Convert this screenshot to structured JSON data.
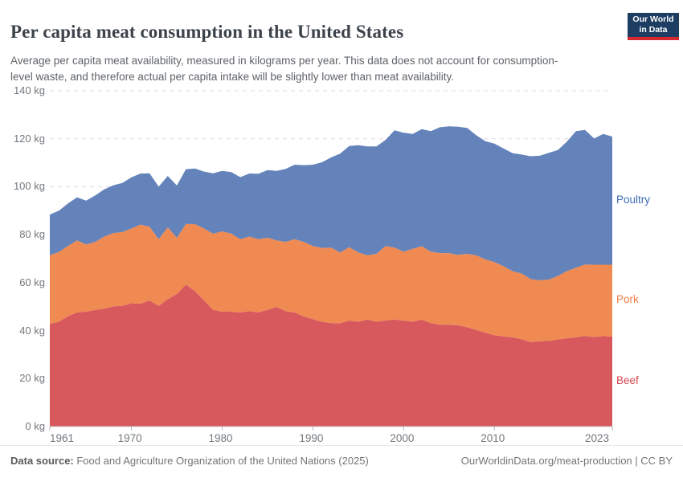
{
  "header": {
    "title": "Per capita meat consumption in the United States",
    "subtitle": "Average per capita meat availability, measured in kilograms per year. This data does not account for consumption-level waste, and therefore actual per capita intake will be slightly lower than meat availability.",
    "logo": {
      "line1": "Our World",
      "line2": "in Data",
      "bg_color": "#1d3d63",
      "bar_color": "#d7282f"
    }
  },
  "chart_data": {
    "type": "area",
    "stacked": true,
    "title": "Per capita meat consumption in the United States",
    "xlabel": "",
    "ylabel": "kilograms per year",
    "ylim": [
      0,
      140
    ],
    "y_ticks": [
      0,
      20,
      40,
      60,
      80,
      100,
      120,
      140
    ],
    "y_tick_suffix": " kg",
    "x_ticks": [
      1961,
      1970,
      1980,
      1990,
      2000,
      2010,
      2023
    ],
    "grid": "horizontal-dashed",
    "legend_position": "right-edge-labels",
    "grid_color": "#dcdcdc",
    "baseline_color": "#c9c9c9",
    "x": [
      1961,
      1962,
      1963,
      1964,
      1965,
      1966,
      1967,
      1968,
      1969,
      1970,
      1971,
      1972,
      1973,
      1974,
      1975,
      1976,
      1977,
      1978,
      1979,
      1980,
      1981,
      1982,
      1983,
      1984,
      1985,
      1986,
      1987,
      1988,
      1989,
      1990,
      1991,
      1992,
      1993,
      1994,
      1995,
      1996,
      1997,
      1998,
      1999,
      2000,
      2001,
      2002,
      2003,
      2004,
      2005,
      2006,
      2007,
      2008,
      2009,
      2010,
      2011,
      2012,
      2013,
      2014,
      2015,
      2016,
      2017,
      2018,
      2019,
      2020,
      2021,
      2022,
      2023
    ],
    "series": [
      {
        "name": "Beef",
        "color": "#d7595e",
        "label_color": "#d8484f",
        "values": [
          42.8,
          43.7,
          46.0,
          47.6,
          47.9,
          48.6,
          49.2,
          50.1,
          50.3,
          51.4,
          51.2,
          52.6,
          50.3,
          53.1,
          55.3,
          59.2,
          56.5,
          52.6,
          48.7,
          47.9,
          47.9,
          47.6,
          48.1,
          47.6,
          48.7,
          49.9,
          48.1,
          47.6,
          45.9,
          44.8,
          43.7,
          43.1,
          43.1,
          44.2,
          43.7,
          44.6,
          43.7,
          44.2,
          44.6,
          44.2,
          43.7,
          44.6,
          43.1,
          42.5,
          42.5,
          42.2,
          41.4,
          40.3,
          39.2,
          38.1,
          37.6,
          37.2,
          36.4,
          35.2,
          35.6,
          35.7,
          36.3,
          36.8,
          37.2,
          37.8,
          37.3,
          37.7,
          37.5
        ]
      },
      {
        "name": "Pork",
        "color": "#f08a53",
        "label_color": "#ef7d45",
        "values": [
          28.6,
          29.1,
          29.3,
          30.0,
          28.0,
          28.4,
          30.0,
          30.6,
          30.8,
          31.2,
          33.0,
          30.7,
          27.8,
          30.0,
          23.4,
          25.3,
          27.9,
          30.0,
          31.7,
          33.5,
          32.6,
          30.5,
          31.1,
          30.5,
          30.0,
          27.7,
          28.9,
          30.5,
          31.1,
          30.5,
          30.8,
          31.5,
          29.5,
          30.6,
          28.9,
          26.8,
          28.3,
          31.1,
          30.0,
          28.7,
          30.4,
          30.6,
          29.8,
          29.8,
          29.8,
          29.4,
          30.6,
          31.1,
          30.5,
          30.5,
          29.3,
          27.6,
          27.4,
          26.3,
          25.4,
          25.6,
          26.5,
          28.0,
          29.0,
          29.8,
          30.2,
          29.8,
          30.0
        ]
      },
      {
        "name": "Poultry",
        "color": "#6383ba",
        "label_color": "#3d6bb4",
        "values": [
          17.0,
          17.2,
          17.7,
          18.0,
          18.3,
          19.4,
          19.7,
          19.9,
          20.5,
          21.3,
          21.3,
          22.3,
          21.9,
          21.4,
          21.8,
          22.8,
          23.2,
          23.7,
          25.2,
          25.2,
          25.6,
          25.9,
          26.3,
          27.3,
          28.2,
          29.0,
          30.4,
          31.1,
          32.0,
          33.9,
          35.7,
          37.6,
          41.2,
          42.2,
          44.7,
          45.4,
          44.8,
          44.2,
          48.9,
          49.6,
          47.9,
          48.8,
          50.3,
          52.5,
          52.9,
          53.4,
          52.5,
          50.1,
          49.3,
          49.4,
          49.1,
          49.2,
          49.6,
          51.2,
          51.9,
          52.8,
          52.5,
          54.0,
          57.0,
          56.1,
          52.6,
          54.5,
          53.4
        ]
      }
    ]
  },
  "footer": {
    "source_label": "Data source:",
    "source_text": " Food and Agriculture Organization of the United Nations (2025)",
    "credit": "OurWorldinData.org/meat-production | CC BY"
  }
}
